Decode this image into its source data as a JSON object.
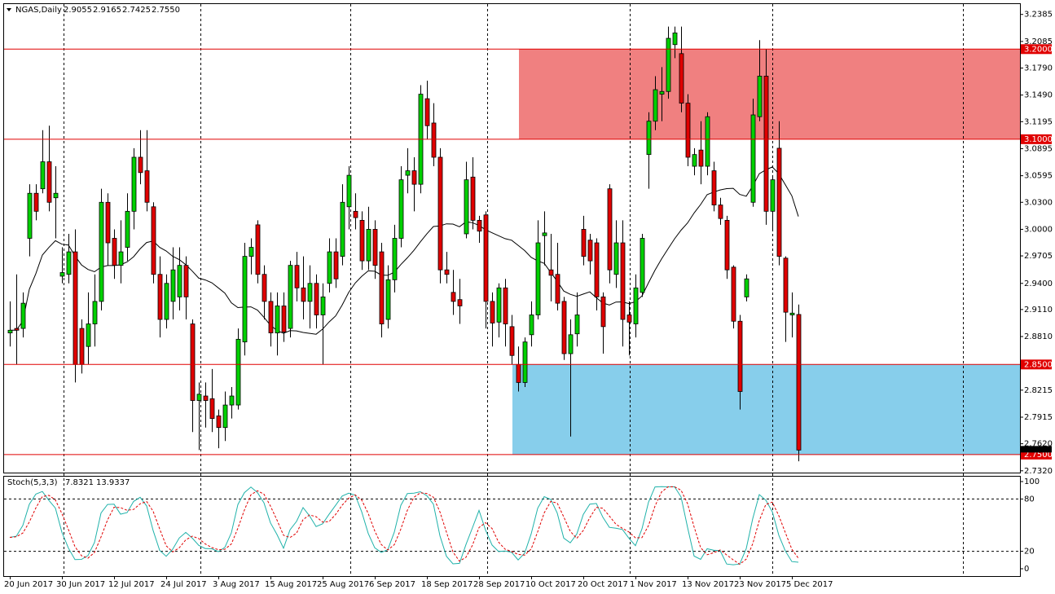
{
  "chart_data": {
    "type": "candlestick",
    "header": {
      "symbol": "NGAS,Daily",
      "ohlc": [
        "2.9055",
        "2.9165",
        "2.7425",
        "2.7550"
      ]
    },
    "categories": [
      "20 Jun 2017",
      null,
      null,
      null,
      null,
      null,
      null,
      null,
      "30 Jun 2017",
      null,
      null,
      null,
      null,
      null,
      null,
      null,
      "12 Jul 2017",
      null,
      null,
      null,
      null,
      null,
      null,
      null,
      "24 Jul 2017",
      null,
      null,
      null,
      null,
      null,
      null,
      null,
      "3 Aug 2017",
      null,
      null,
      null,
      null,
      null,
      null,
      null,
      "15 Aug 2017",
      null,
      null,
      null,
      null,
      null,
      null,
      null,
      "25 Aug 2017",
      null,
      null,
      null,
      null,
      null,
      null,
      null,
      "6 Sep 2017",
      null,
      null,
      null,
      null,
      null,
      null,
      null,
      "18 Sep 2017",
      null,
      null,
      null,
      null,
      null,
      null,
      null,
      "28 Sep 2017",
      null,
      null,
      null,
      null,
      null,
      null,
      null,
      "10 Oct 2017",
      null,
      null,
      null,
      null,
      null,
      null,
      null,
      "20 Oct 2017",
      null,
      null,
      null,
      null,
      null,
      null,
      null,
      "1 Nov 2017",
      null,
      null,
      null,
      null,
      null,
      null,
      null,
      "13 Nov 2017",
      null,
      null,
      null,
      null,
      null,
      null,
      null,
      "23 Nov 2017",
      null,
      null,
      null,
      null,
      null,
      null,
      null,
      "5 Dec 2017",
      null
    ],
    "open": [
      2.885,
      2.89,
      2.89,
      2.99,
      3.04,
      3.045,
      3.075,
      3.035,
      2.948,
      2.95,
      2.975,
      2.89,
      2.87,
      2.895,
      2.92,
      3.03,
      2.99,
      2.96,
      2.98,
      3.02,
      3.08,
      3.065,
      3.025,
      2.95,
      2.9,
      2.92,
      2.925,
      2.96,
      2.895,
      2.81,
      2.815,
      2.812,
      2.793,
      2.78,
      2.805,
      2.805,
      2.875,
      2.97,
      3.005,
      2.95,
      2.92,
      2.885,
      2.915,
      2.89,
      2.96,
      2.935,
      2.92,
      2.94,
      2.905,
      2.94,
      2.975,
      2.97,
      3.025,
      3.02,
      3.01,
      2.965,
      3.0,
      2.975,
      2.9,
      2.944,
      2.99,
      3.06,
      3.065,
      3.05,
      3.145,
      3.118,
      3.08,
      2.955,
      2.93,
      2.922,
      2.995,
      3.058,
      3.01,
      3.016,
      2.92,
      2.897,
      2.935,
      2.892,
      2.85,
      2.83,
      2.883,
      2.905,
      2.993,
      2.955,
      2.95,
      2.92,
      2.862,
      2.884,
      3.0,
      2.988,
      2.985,
      2.925,
      3.045,
      2.95,
      2.985,
      2.905,
      2.895,
      2.93,
      3.083,
      3.12,
      3.15,
      3.153,
      3.205,
      3.195,
      3.14,
      3.07,
      3.088,
      3.07,
      3.065,
      3.027,
      3.01,
      2.958,
      2.898,
      2.925,
      3.03,
      3.125,
      3.17,
      3.02,
      3.09,
      2.968,
      2.905,
      2.9055
    ],
    "high": [
      2.92,
      2.95,
      2.93,
      3.05,
      3.05,
      3.11,
      3.115,
      3.07,
      2.98,
      2.995,
      3.0,
      2.9,
      2.93,
      2.95,
      3.045,
      3.04,
      3.0,
      3.01,
      3.04,
      3.09,
      3.11,
      3.11,
      3.03,
      2.97,
      2.95,
      2.98,
      2.98,
      2.97,
      2.9,
      2.83,
      2.83,
      2.845,
      2.8,
      2.82,
      2.825,
      2.89,
      2.985,
      2.99,
      3.01,
      2.96,
      2.93,
      2.93,
      2.93,
      2.965,
      2.975,
      2.97,
      2.96,
      2.95,
      2.94,
      2.99,
      2.99,
      3.05,
      3.07,
      3.04,
      3.02,
      3.025,
      3.01,
      2.985,
      2.96,
      3.005,
      3.07,
      3.09,
      3.08,
      3.16,
      3.165,
      3.14,
      3.09,
      2.975,
      2.955,
      2.945,
      3.075,
      3.08,
      3.015,
      3.02,
      2.93,
      2.94,
      2.945,
      2.905,
      2.87,
      2.88,
      2.92,
      3.01,
      3.02,
      2.995,
      2.985,
      2.925,
      2.9,
      2.93,
      3.015,
      2.995,
      2.99,
      2.93,
      3.05,
      3.01,
      3.01,
      2.92,
      2.95,
      2.995,
      3.13,
      3.17,
      3.18,
      3.225,
      3.225,
      3.225,
      3.15,
      3.09,
      3.12,
      3.13,
      3.075,
      3.035,
      3.015,
      2.96,
      2.905,
      2.95,
      3.145,
      3.21,
      3.2,
      3.06,
      3.12,
      2.97,
      2.93,
      2.9165
    ],
    "low": [
      2.87,
      2.85,
      2.88,
      2.97,
      3.01,
      3.04,
      3.02,
      2.99,
      2.94,
      2.94,
      2.83,
      2.84,
      2.85,
      2.87,
      2.91,
      2.96,
      2.945,
      2.94,
      2.965,
      3.0,
      3.05,
      3.02,
      2.94,
      2.88,
      2.89,
      2.9,
      2.91,
      2.9,
      2.775,
      2.755,
      2.78,
      2.775,
      2.757,
      2.765,
      2.79,
      2.8,
      2.86,
      2.95,
      2.94,
      2.9,
      2.87,
      2.86,
      2.875,
      2.88,
      2.92,
      2.9,
      2.89,
      2.89,
      2.85,
      2.93,
      2.935,
      2.96,
      3.0,
      3.0,
      2.955,
      2.955,
      2.945,
      2.88,
      2.89,
      2.93,
      2.98,
      3.04,
      3.02,
      3.04,
      3.1,
      3.07,
      2.94,
      2.94,
      2.905,
      2.895,
      2.99,
      3.0,
      2.985,
      2.89,
      2.87,
      2.88,
      2.87,
      2.85,
      2.82,
      2.825,
      2.87,
      2.9,
      2.96,
      2.92,
      2.91,
      2.855,
      2.77,
      2.87,
      2.96,
      2.95,
      2.91,
      2.862,
      2.94,
      2.935,
      2.87,
      2.86,
      2.88,
      2.925,
      3.045,
      3.11,
      3.12,
      3.145,
      3.19,
      3.13,
      3.07,
      3.06,
      3.05,
      3.06,
      3.02,
      3.005,
      2.945,
      2.89,
      2.8,
      2.92,
      3.025,
      3.12,
      3.005,
      3.0,
      2.96,
      2.875,
      2.88,
      2.7425
    ],
    "close": [
      2.888,
      2.888,
      2.918,
      3.04,
      3.02,
      3.075,
      3.03,
      3.04,
      2.952,
      2.975,
      2.85,
      2.85,
      2.895,
      2.92,
      3.03,
      2.985,
      2.96,
      2.975,
      3.02,
      3.08,
      3.063,
      3.03,
      2.95,
      2.9,
      2.94,
      2.955,
      2.96,
      2.925,
      2.81,
      2.817,
      2.81,
      2.79,
      2.78,
      2.805,
      2.815,
      2.878,
      2.97,
      2.98,
      2.95,
      2.92,
      2.885,
      2.915,
      2.886,
      2.96,
      2.935,
      2.92,
      2.94,
      2.905,
      2.925,
      2.975,
      2.945,
      3.03,
      3.06,
      3.013,
      2.965,
      3.0,
      2.96,
      2.895,
      2.944,
      2.99,
      3.055,
      3.065,
      3.05,
      3.15,
      3.115,
      3.08,
      2.955,
      2.95,
      2.92,
      2.915,
      3.055,
      3.01,
      2.998,
      2.92,
      2.896,
      2.935,
      2.895,
      2.86,
      2.83,
      2.875,
      2.905,
      2.985,
      2.996,
      2.949,
      2.918,
      2.862,
      2.883,
      2.905,
      2.97,
      2.965,
      2.925,
      2.892,
      2.955,
      2.985,
      2.9,
      2.897,
      2.935,
      2.99,
      3.12,
      3.155,
      3.153,
      3.212,
      3.218,
      3.14,
      3.08,
      3.083,
      3.07,
      3.125,
      3.027,
      3.012,
      2.955,
      2.898,
      2.82,
      2.945,
      3.127,
      3.17,
      3.02,
      3.055,
      2.97,
      2.908,
      2.907,
      2.755
    ],
    "up_color": "#00d000",
    "down_color": "#e00000",
    "ma_color": "#000000",
    "ylim": [
      2.73,
      3.25
    ],
    "yticks": [
      3.2385,
      3.2085,
      {
        "value": 3.179,
        "label": "3.1790"
      },
      {
        "value": 3.149,
        "label": "3.1490"
      },
      3.1195,
      3.0895,
      3.0595,
      {
        "value": 3.03,
        "label": "3.0300"
      },
      {
        "value": 3,
        "label": "3.0000"
      },
      2.9705,
      {
        "value": 2.94,
        "label": "2.9400"
      },
      {
        "value": 2.911,
        "label": "2.9110"
      },
      {
        "value": 2.881,
        "label": "2.8810"
      },
      2.8215,
      2.7915,
      {
        "value": 2.762,
        "label": "2.7620"
      },
      {
        "value": 2.732,
        "label": "2.7320"
      }
    ],
    "levels": [
      {
        "value": 3.2,
        "label": "3.2000"
      },
      {
        "value": 3.1,
        "label": "3.1000"
      },
      {
        "value": 2.85,
        "label": "2.8500"
      },
      {
        "value": 2.75,
        "label": "2.7500"
      }
    ],
    "level_color": "#e00000",
    "zones": [
      {
        "color": "#f08080"
      },
      {
        "color": "#87ceeb"
      }
    ],
    "stoch": {
      "name": "Stoch(5,3,3)",
      "k": 7.8321,
      "d": 13.9337,
      "k_color": "#20b2aa",
      "d_color": "#e00000",
      "ylim": [
        0,
        100
      ],
      "yticks": [
        100,
        80,
        20,
        0
      ]
    }
  }
}
